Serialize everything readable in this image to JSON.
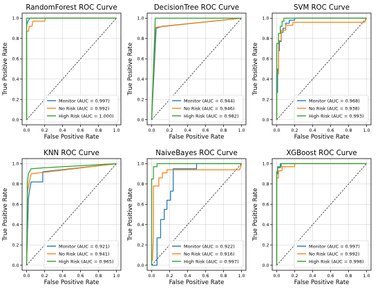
{
  "figure": {
    "colors": {
      "monitor": "#1f77b4",
      "norisk": "#ff7f0e",
      "highrisk": "#2ca02c"
    }
  },
  "chart_data": [
    {
      "type": "line",
      "title": "RandomForest ROC Curve",
      "xlabel": "False Positive Rate",
      "ylabel": "True Positive Rate",
      "xlim": [
        0.0,
        1.0
      ],
      "ylim": [
        0.0,
        1.0
      ],
      "xticks": [
        "0.0",
        "0.2",
        "0.4",
        "0.6",
        "0.8",
        "1.0"
      ],
      "yticks": [
        "0.0",
        "0.2",
        "0.4",
        "0.6",
        "0.8",
        "1.0"
      ],
      "grid": true,
      "legend": "lower-right",
      "baseline": "dashed diagonal",
      "series": [
        {
          "name": "Monitor (AUC = 0.997)",
          "color": "#1f77b4",
          "x": [
            0,
            0,
            0.01,
            0.02,
            0.04,
            1
          ],
          "y": [
            0,
            0.93,
            0.96,
            0.98,
            1,
            1
          ]
        },
        {
          "name": "No Risk (AUC = 0.992)",
          "color": "#ff7f0e",
          "x": [
            0,
            0,
            0.02,
            0.03,
            0.06,
            0.07,
            0.2,
            0.21,
            1
          ],
          "y": [
            0,
            0.87,
            0.87,
            0.92,
            0.92,
            0.97,
            0.97,
            1,
            1
          ]
        },
        {
          "name": "High Risk (AUC = 1.000)",
          "color": "#2ca02c",
          "x": [
            0,
            0,
            1
          ],
          "y": [
            0,
            1,
            1
          ]
        }
      ]
    },
    {
      "type": "line",
      "title": "DecisionTree ROC Curve",
      "xlabel": "False Positive Rate",
      "ylabel": "True Positive Rate",
      "xlim": [
        0.0,
        1.0
      ],
      "ylim": [
        0.0,
        1.0
      ],
      "xticks": [
        "0.0",
        "0.2",
        "0.4",
        "0.6",
        "0.8",
        "1.0"
      ],
      "yticks": [
        "0.0",
        "0.2",
        "0.4",
        "0.6",
        "0.8",
        "1.0"
      ],
      "grid": true,
      "legend": "lower-right",
      "baseline": "dashed diagonal",
      "series": [
        {
          "name": "Monitor (AUC = 0.944)",
          "color": "#1f77b4",
          "x": [
            0,
            0.05,
            0.12,
            1
          ],
          "y": [
            0,
            0.9,
            0.92,
            1
          ]
        },
        {
          "name": "No Risk (AUC = 0.946)",
          "color": "#ff7f0e",
          "x": [
            0,
            0.04,
            1
          ],
          "y": [
            0,
            0.91,
            1
          ]
        },
        {
          "name": "High Risk (AUC = 0.982)",
          "color": "#2ca02c",
          "x": [
            0,
            0.04,
            1
          ],
          "y": [
            0,
            1,
            1
          ]
        }
      ]
    },
    {
      "type": "line",
      "title": "SVM ROC Curve",
      "xlabel": "False Positive Rate",
      "ylabel": "True Positive Rate",
      "xlim": [
        0.0,
        1.0
      ],
      "ylim": [
        0.0,
        1.0
      ],
      "xticks": [
        "0.0",
        "0.2",
        "0.4",
        "0.6",
        "0.8",
        "1.0"
      ],
      "yticks": [
        "0.0",
        "0.2",
        "0.4",
        "0.6",
        "0.8",
        "1.0"
      ],
      "grid": true,
      "legend": "lower-right",
      "baseline": "dashed diagonal",
      "series": [
        {
          "name": "Monitor (AUC = 0.968)",
          "color": "#1f77b4",
          "x": [
            0,
            0,
            0.01,
            0.01,
            0.02,
            0.02,
            0.03,
            0.03,
            0.05,
            0.05,
            0.07,
            0.07,
            0.1,
            0.1,
            0.14,
            0.14,
            0.2,
            0.2,
            1
          ],
          "y": [
            0,
            0.27,
            0.27,
            0.5,
            0.5,
            0.68,
            0.68,
            0.77,
            0.77,
            0.86,
            0.86,
            0.9,
            0.9,
            0.95,
            0.95,
            0.98,
            0.98,
            1,
            1
          ]
        },
        {
          "name": "No Risk (AUC = 0.938)",
          "color": "#ff7f0e",
          "x": [
            0,
            0,
            0.02,
            0.02,
            0.05,
            0.05,
            0.1,
            0.1,
            0.18,
            0.18,
            0.98,
            1
          ],
          "y": [
            0,
            0.45,
            0.45,
            0.78,
            0.78,
            0.88,
            0.88,
            0.93,
            0.93,
            0.96,
            0.96,
            1
          ]
        },
        {
          "name": "High Risk (AUC = 0.993)",
          "color": "#2ca02c",
          "x": [
            0,
            0,
            0.02,
            0.02,
            0.04,
            0.04,
            0.06,
            0.06,
            0.08,
            0.08,
            1
          ],
          "y": [
            0,
            0.75,
            0.75,
            0.85,
            0.85,
            0.92,
            0.92,
            0.97,
            0.97,
            1,
            1
          ]
        }
      ]
    },
    {
      "type": "line",
      "title": "KNN ROC Curve",
      "xlabel": "False Positive Rate",
      "ylabel": "True Positive Rate",
      "xlim": [
        0.0,
        1.0
      ],
      "ylim": [
        0.0,
        1.0
      ],
      "xticks": [
        "0.0",
        "0.2",
        "0.4",
        "0.6",
        "0.8",
        "1.0"
      ],
      "yticks": [
        "0.0",
        "0.2",
        "0.4",
        "0.6",
        "0.8",
        "1.0"
      ],
      "grid": true,
      "legend": "lower-right",
      "baseline": "dashed diagonal",
      "series": [
        {
          "name": "Monitor (AUC = 0.921)",
          "color": "#1f77b4",
          "x": [
            0,
            0.02,
            0.03,
            0.05,
            0.18,
            0.18,
            1
          ],
          "y": [
            0,
            0.65,
            0.72,
            0.82,
            0.82,
            0.92,
            1
          ]
        },
        {
          "name": "No Risk (AUC = 0.941)",
          "color": "#ff7f0e",
          "x": [
            0,
            0.01,
            0.03,
            0.05,
            1
          ],
          "y": [
            0,
            0.72,
            0.82,
            0.9,
            1
          ]
        },
        {
          "name": "High Risk (AUC = 0.965)",
          "color": "#2ca02c",
          "x": [
            0,
            0.01,
            0.02,
            0.05,
            0.2,
            1
          ],
          "y": [
            0,
            0.82,
            0.9,
            0.95,
            0.96,
            1
          ]
        }
      ]
    },
    {
      "type": "line",
      "title": "NaiveBayes ROC Curve",
      "xlabel": "False Positive Rate",
      "ylabel": "True Positive Rate",
      "xlim": [
        0.0,
        1.0
      ],
      "ylim": [
        0.0,
        1.0
      ],
      "xticks": [
        "0.0",
        "0.2",
        "0.4",
        "0.6",
        "0.8",
        "1.0"
      ],
      "yticks": [
        "0.0",
        "0.2",
        "0.4",
        "0.6",
        "0.8",
        "1.0"
      ],
      "grid": true,
      "legend": "lower-right",
      "baseline": "dashed diagonal",
      "series": [
        {
          "name": "Monitor (AUC = 0.922)",
          "color": "#1f77b4",
          "x": [
            0,
            0.06,
            0.06,
            0.1,
            0.1,
            0.14,
            0.14,
            0.17,
            0.17,
            0.21,
            0.21,
            0.24,
            0.24,
            0.5,
            0.5,
            1
          ],
          "y": [
            0,
            0,
            0.27,
            0.27,
            0.45,
            0.45,
            0.55,
            0.55,
            0.64,
            0.64,
            0.73,
            0.73,
            0.95,
            0.95,
            1,
            1
          ]
        },
        {
          "name": "No Risk (AUC = 0.916)",
          "color": "#ff7f0e",
          "x": [
            0,
            0,
            0.01,
            0.02,
            0.02,
            0.08,
            0.08,
            0.12,
            0.12,
            0.17,
            0.17,
            0.98,
            1
          ],
          "y": [
            0,
            0.05,
            0.05,
            0.3,
            0.78,
            0.78,
            0.86,
            0.86,
            0.91,
            0.91,
            0.94,
            0.94,
            1
          ]
        },
        {
          "name": "High Risk (AUC = 0.997)",
          "color": "#2ca02c",
          "x": [
            0,
            0,
            0.02,
            0.02,
            0.06,
            0.06,
            1
          ],
          "y": [
            0,
            0.85,
            0.85,
            0.97,
            0.97,
            1,
            1
          ]
        }
      ]
    },
    {
      "type": "line",
      "title": "XGBoost ROC Curve",
      "xlabel": "False Positive Rate",
      "ylabel": "True Positive Rate",
      "xlim": [
        0.0,
        1.0
      ],
      "ylim": [
        0.0,
        1.0
      ],
      "xticks": [
        "0.0",
        "0.2",
        "0.4",
        "0.6",
        "0.8",
        "1.0"
      ],
      "yticks": [
        "0.0",
        "0.2",
        "0.4",
        "0.6",
        "0.8",
        "1.0"
      ],
      "grid": true,
      "legend": "lower-right",
      "baseline": "dashed diagonal",
      "series": [
        {
          "name": "Monitor (AUC = 0.997)",
          "color": "#1f77b4",
          "x": [
            0,
            0,
            0.01,
            0.01,
            0.04,
            0.04,
            1
          ],
          "y": [
            0,
            0.9,
            0.9,
            0.96,
            0.96,
            1,
            1
          ]
        },
        {
          "name": "No Risk (AUC = 0.992)",
          "color": "#ff7f0e",
          "x": [
            0,
            0,
            0.02,
            0.02,
            0.06,
            0.06,
            0.2,
            0.2,
            1
          ],
          "y": [
            0,
            0.86,
            0.86,
            0.93,
            0.93,
            0.97,
            0.97,
            1,
            1
          ]
        },
        {
          "name": "High Risk (AUC = 0.998)",
          "color": "#2ca02c",
          "x": [
            0,
            0,
            0.01,
            0.01,
            0.05,
            0.05,
            1
          ],
          "y": [
            0,
            0.92,
            0.92,
            0.97,
            0.97,
            1,
            1
          ]
        }
      ]
    }
  ]
}
